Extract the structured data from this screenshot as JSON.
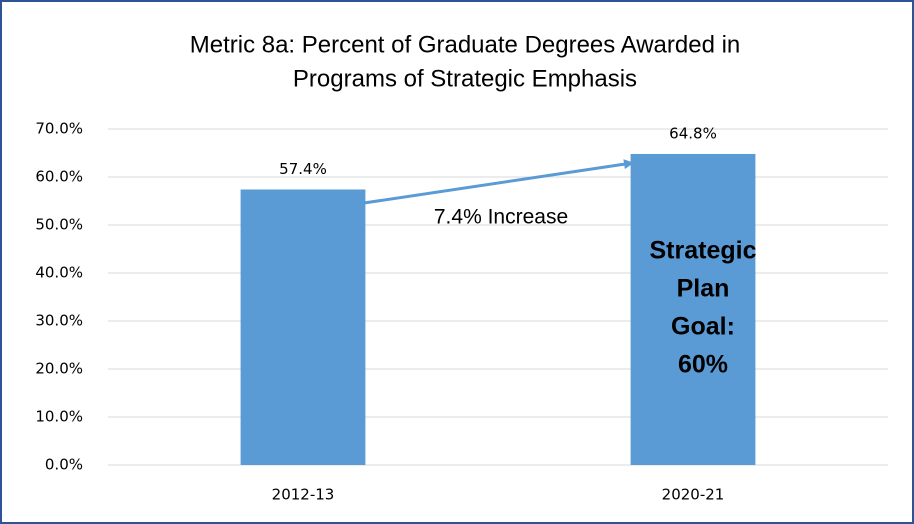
{
  "chart_data": {
    "type": "bar",
    "title": [
      "Metric 8a: Percent of Graduate Degrees Awarded in",
      "Programs of Strategic Emphasis"
    ],
    "categories": [
      "2012-13",
      "2020-21"
    ],
    "values": [
      57.4,
      64.8
    ],
    "value_labels": [
      "57.4%",
      "64.8%"
    ],
    "color": "#5b9bd5",
    "ylim": [
      0,
      70
    ],
    "yticks": [
      {
        "value": 0,
        "label": "0.0%"
      },
      {
        "value": 10,
        "label": "10.0%"
      },
      {
        "value": 20,
        "label": "20.0%"
      },
      {
        "value": 30,
        "label": "30.0%"
      },
      {
        "value": 40,
        "label": "40.0%"
      },
      {
        "value": 50,
        "label": "50.0%"
      },
      {
        "value": 60,
        "label": "60.0%"
      },
      {
        "value": 70,
        "label": "70.0%"
      }
    ],
    "grid": true,
    "annotations": {
      "increase": "7.4% Increase",
      "goal": [
        "Strategic",
        "Plan",
        "Goal:",
        "60%"
      ]
    }
  }
}
